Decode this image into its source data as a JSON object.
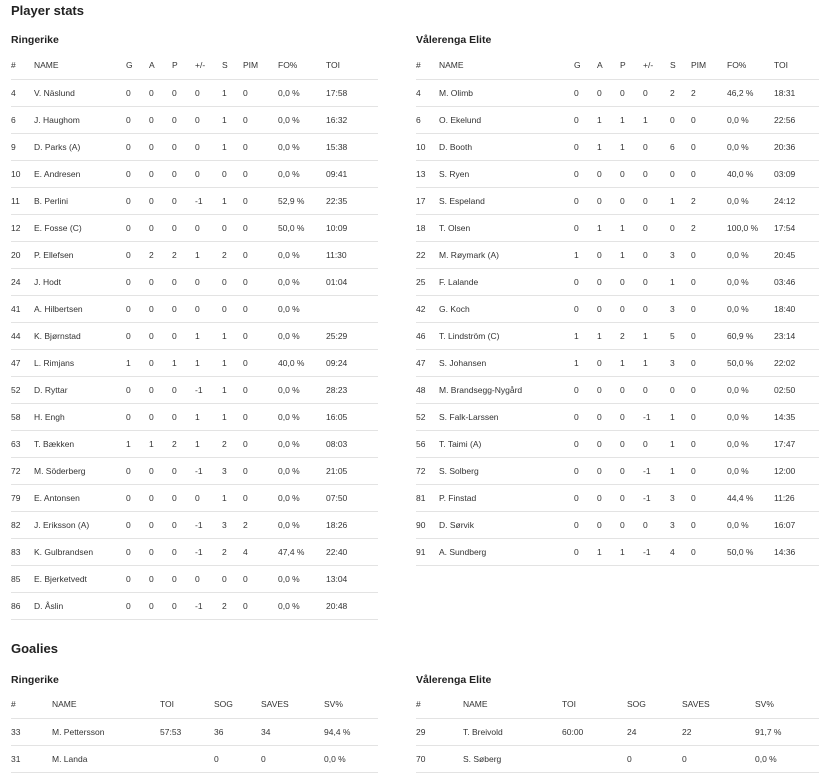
{
  "title": "Player stats",
  "columns": [
    "#",
    "NAME",
    "G",
    "A",
    "P",
    "+/-",
    "S",
    "PIM",
    "FO%",
    "TOI"
  ],
  "home": {
    "team": "Ringerike",
    "rows": [
      [
        "4",
        "V. Näslund",
        "0",
        "0",
        "0",
        "0",
        "1",
        "0",
        "0,0 %",
        "17:58"
      ],
      [
        "6",
        "J. Haughom",
        "0",
        "0",
        "0",
        "0",
        "1",
        "0",
        "0,0 %",
        "16:32"
      ],
      [
        "9",
        "D. Parks (A)",
        "0",
        "0",
        "0",
        "0",
        "1",
        "0",
        "0,0 %",
        "15:38"
      ],
      [
        "10",
        "E. Andresen",
        "0",
        "0",
        "0",
        "0",
        "0",
        "0",
        "0,0 %",
        "09:41"
      ],
      [
        "11",
        "B. Perlini",
        "0",
        "0",
        "0",
        "-1",
        "1",
        "0",
        "52,9 %",
        "22:35"
      ],
      [
        "12",
        "E. Fosse (C)",
        "0",
        "0",
        "0",
        "0",
        "0",
        "0",
        "50,0 %",
        "10:09"
      ],
      [
        "20",
        "P. Ellefsen",
        "0",
        "2",
        "2",
        "1",
        "2",
        "0",
        "0,0 %",
        "11:30"
      ],
      [
        "24",
        "J. Hodt",
        "0",
        "0",
        "0",
        "0",
        "0",
        "0",
        "0,0 %",
        "01:04"
      ],
      [
        "41",
        "A. Hilbertsen",
        "0",
        "0",
        "0",
        "0",
        "0",
        "0",
        "0,0 %",
        ""
      ],
      [
        "44",
        "K. Bjørnstad",
        "0",
        "0",
        "0",
        "1",
        "1",
        "0",
        "0,0 %",
        "25:29"
      ],
      [
        "47",
        "L. Rimjans",
        "1",
        "0",
        "1",
        "1",
        "1",
        "0",
        "40,0 %",
        "09:24"
      ],
      [
        "52",
        "D. Ryttar",
        "0",
        "0",
        "0",
        "-1",
        "1",
        "0",
        "0,0 %",
        "28:23"
      ],
      [
        "58",
        "H. Engh",
        "0",
        "0",
        "0",
        "1",
        "1",
        "0",
        "0,0 %",
        "16:05"
      ],
      [
        "63",
        "T. Bækken",
        "1",
        "1",
        "2",
        "1",
        "2",
        "0",
        "0,0 %",
        "08:03"
      ],
      [
        "72",
        "M. Söderberg",
        "0",
        "0",
        "0",
        "-1",
        "3",
        "0",
        "0,0 %",
        "21:05"
      ],
      [
        "79",
        "E. Antonsen",
        "0",
        "0",
        "0",
        "0",
        "1",
        "0",
        "0,0 %",
        "07:50"
      ],
      [
        "82",
        "J. Eriksson (A)",
        "0",
        "0",
        "0",
        "-1",
        "3",
        "2",
        "0,0 %",
        "18:26"
      ],
      [
        "83",
        "K. Gulbrandsen",
        "0",
        "0",
        "0",
        "-1",
        "2",
        "4",
        "47,4 %",
        "22:40"
      ],
      [
        "85",
        "E. Bjerketvedt",
        "0",
        "0",
        "0",
        "0",
        "0",
        "0",
        "0,0 %",
        "13:04"
      ],
      [
        "86",
        "D. Åslin",
        "0",
        "0",
        "0",
        "-1",
        "2",
        "0",
        "0,0 %",
        "20:48"
      ]
    ]
  },
  "away": {
    "team": "Vålerenga Elite",
    "rows": [
      [
        "4",
        "M. Olimb",
        "0",
        "0",
        "0",
        "0",
        "2",
        "2",
        "46,2 %",
        "18:31"
      ],
      [
        "6",
        "O. Ekelund",
        "0",
        "1",
        "1",
        "1",
        "0",
        "0",
        "0,0 %",
        "22:56"
      ],
      [
        "10",
        "D. Booth",
        "0",
        "1",
        "1",
        "0",
        "6",
        "0",
        "0,0 %",
        "20:36"
      ],
      [
        "13",
        "S. Ryen",
        "0",
        "0",
        "0",
        "0",
        "0",
        "0",
        "40,0 %",
        "03:09"
      ],
      [
        "17",
        "S. Espeland",
        "0",
        "0",
        "0",
        "0",
        "1",
        "2",
        "0,0 %",
        "24:12"
      ],
      [
        "18",
        "T. Olsen",
        "0",
        "1",
        "1",
        "0",
        "0",
        "2",
        "100,0 %",
        "17:54"
      ],
      [
        "22",
        "M. Røymark (A)",
        "1",
        "0",
        "1",
        "0",
        "3",
        "0",
        "0,0 %",
        "20:45"
      ],
      [
        "25",
        "F. Lalande",
        "0",
        "0",
        "0",
        "0",
        "1",
        "0",
        "0,0 %",
        "03:46"
      ],
      [
        "42",
        "G. Koch",
        "0",
        "0",
        "0",
        "0",
        "3",
        "0",
        "0,0 %",
        "18:40"
      ],
      [
        "46",
        "T. Lindström (C)",
        "1",
        "1",
        "2",
        "1",
        "5",
        "0",
        "60,9 %",
        "23:14"
      ],
      [
        "47",
        "S. Johansen",
        "1",
        "0",
        "1",
        "1",
        "3",
        "0",
        "50,0 %",
        "22:02"
      ],
      [
        "48",
        "M. Brandsegg-Nygård",
        "0",
        "0",
        "0",
        "0",
        "0",
        "0",
        "0,0 %",
        "02:50"
      ],
      [
        "52",
        "S. Falk-Larssen",
        "0",
        "0",
        "0",
        "-1",
        "1",
        "0",
        "0,0 %",
        "14:35"
      ],
      [
        "56",
        "T. Taimi (A)",
        "0",
        "0",
        "0",
        "0",
        "1",
        "0",
        "0,0 %",
        "17:47"
      ],
      [
        "72",
        "S. Solberg",
        "0",
        "0",
        "0",
        "-1",
        "1",
        "0",
        "0,0 %",
        "12:00"
      ],
      [
        "81",
        "P. Finstad",
        "0",
        "0",
        "0",
        "-1",
        "3",
        "0",
        "44,4 %",
        "11:26"
      ],
      [
        "90",
        "D. Sørvik",
        "0",
        "0",
        "0",
        "0",
        "3",
        "0",
        "0,0 %",
        "16:07"
      ],
      [
        "91",
        "A. Sundberg",
        "0",
        "1",
        "1",
        "-1",
        "4",
        "0",
        "50,0 %",
        "14:36"
      ]
    ]
  },
  "goalies": {
    "title": "Goalies",
    "columns": [
      "#",
      "NAME",
      "TOI",
      "SOG",
      "SAVES",
      "SV%"
    ],
    "home": {
      "team": "Ringerike",
      "rows": [
        [
          "33",
          "M. Pettersson",
          "57:53",
          "36",
          "34",
          "94,4 %"
        ],
        [
          "31",
          "M. Landa",
          "",
          "0",
          "0",
          "0,0 %"
        ]
      ]
    },
    "away": {
      "team": "Vålerenga Elite",
      "rows": [
        [
          "29",
          "T. Breivold",
          "60:00",
          "24",
          "22",
          "91,7 %"
        ],
        [
          "70",
          "S. Søberg",
          "",
          "0",
          "0",
          "0,0 %"
        ]
      ]
    }
  }
}
